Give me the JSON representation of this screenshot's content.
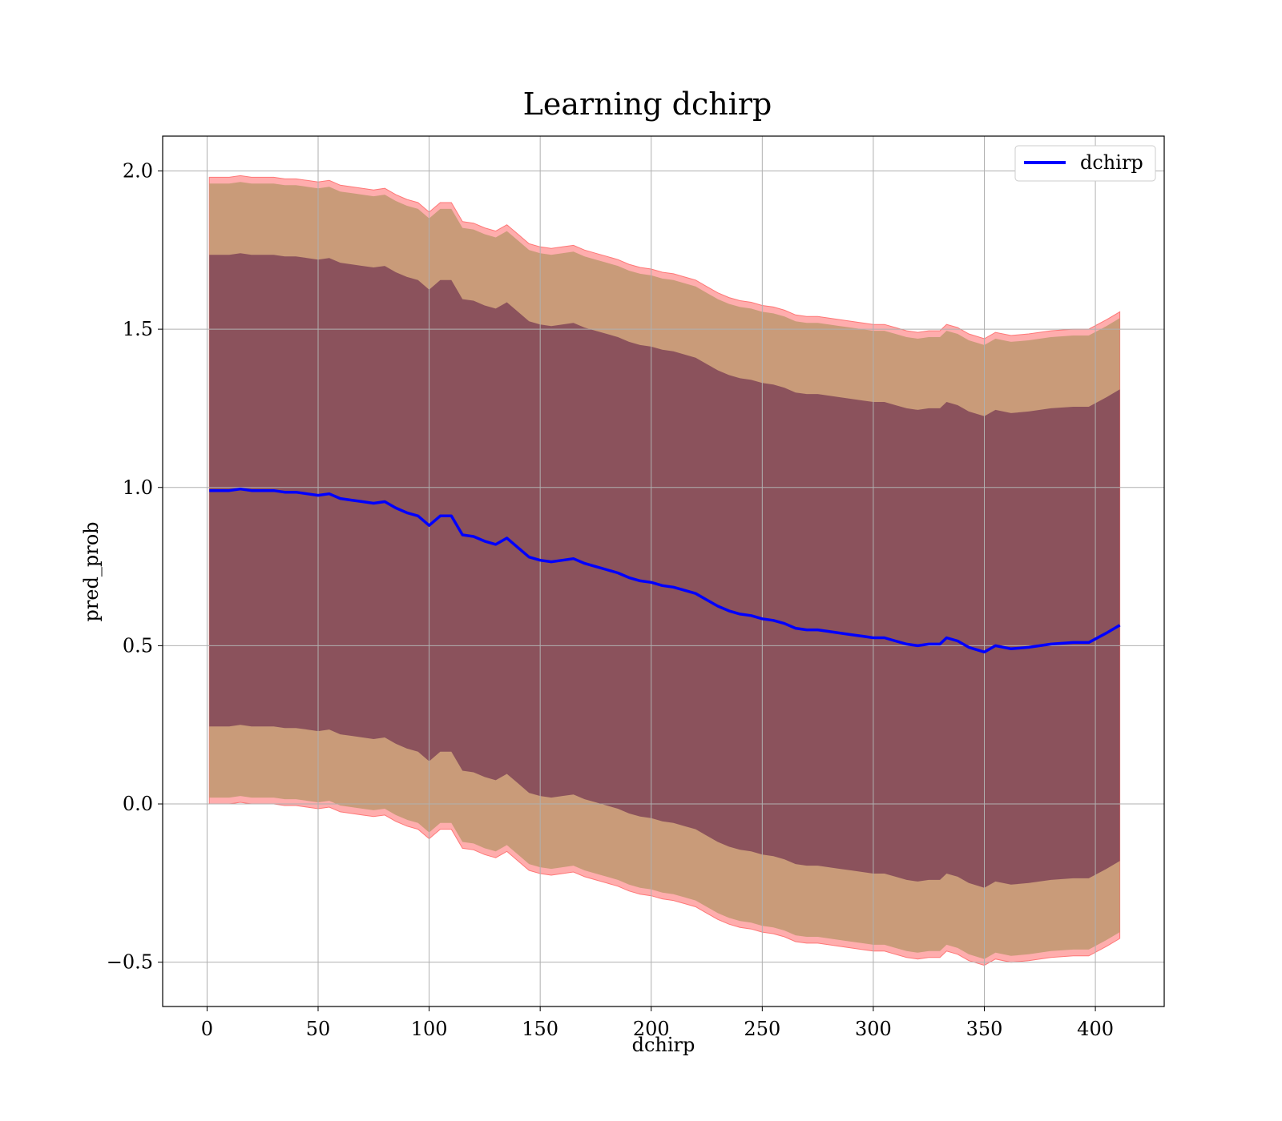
{
  "chart_data": {
    "type": "line",
    "title": "Learning dchirp",
    "xlabel": "dchirp",
    "ylabel": "pred_prob",
    "xlim": [
      -20,
      431
    ],
    "ylim": [
      -0.64,
      2.11
    ],
    "xticks": [
      0,
      50,
      100,
      150,
      200,
      250,
      300,
      350,
      400
    ],
    "yticks": [
      -0.5,
      0.0,
      0.5,
      1.0,
      1.5,
      2.0
    ],
    "xtick_labels": [
      "0",
      "50",
      "100",
      "150",
      "200",
      "250",
      "300",
      "350",
      "400"
    ],
    "ytick_labels": [
      "−0.5",
      "0.0",
      "0.5",
      "1.0",
      "1.5",
      "2.0"
    ],
    "grid": true,
    "legend_position": "top-right",
    "colors": {
      "mean_line": "#0000ff",
      "outer_band": "#ff0000",
      "middle_band": "#c09870",
      "inner_band": "#7a3e55"
    },
    "series": [
      {
        "name": "dchirp",
        "x": [
          1,
          5,
          10,
          15,
          20,
          25,
          30,
          35,
          40,
          45,
          50,
          55,
          60,
          65,
          70,
          75,
          80,
          85,
          90,
          95,
          100,
          105,
          110,
          115,
          120,
          125,
          130,
          135,
          140,
          145,
          150,
          155,
          160,
          165,
          170,
          175,
          180,
          185,
          190,
          195,
          200,
          205,
          210,
          215,
          220,
          225,
          230,
          235,
          240,
          245,
          250,
          255,
          260,
          265,
          270,
          275,
          280,
          285,
          290,
          295,
          300,
          305,
          310,
          315,
          320,
          325,
          330,
          333,
          338,
          343,
          350,
          355,
          362,
          370,
          380,
          390,
          397,
          405,
          411
        ],
        "y": [
          0.99,
          0.99,
          0.99,
          0.995,
          0.99,
          0.99,
          0.99,
          0.985,
          0.985,
          0.98,
          0.975,
          0.98,
          0.965,
          0.96,
          0.955,
          0.95,
          0.955,
          0.935,
          0.92,
          0.91,
          0.88,
          0.91,
          0.91,
          0.85,
          0.845,
          0.83,
          0.82,
          0.84,
          0.81,
          0.78,
          0.77,
          0.765,
          0.77,
          0.775,
          0.76,
          0.75,
          0.74,
          0.73,
          0.715,
          0.705,
          0.7,
          0.69,
          0.685,
          0.675,
          0.665,
          0.645,
          0.625,
          0.61,
          0.6,
          0.595,
          0.585,
          0.58,
          0.57,
          0.555,
          0.55,
          0.55,
          0.545,
          0.54,
          0.535,
          0.53,
          0.525,
          0.525,
          0.515,
          0.505,
          0.5,
          0.505,
          0.505,
          0.525,
          0.515,
          0.495,
          0.48,
          0.5,
          0.49,
          0.495,
          0.505,
          0.51,
          0.51,
          0.54,
          0.565
        ]
      }
    ],
    "bands": [
      {
        "offset_upper": 0.99,
        "offset_lower": 0.99,
        "description_color": "outer_band"
      },
      {
        "offset_upper": 0.97,
        "offset_lower": 0.97,
        "description_color": "middle_band"
      },
      {
        "offset_upper": 0.745,
        "offset_lower": 0.745,
        "description_color": "inner_band"
      }
    ]
  }
}
